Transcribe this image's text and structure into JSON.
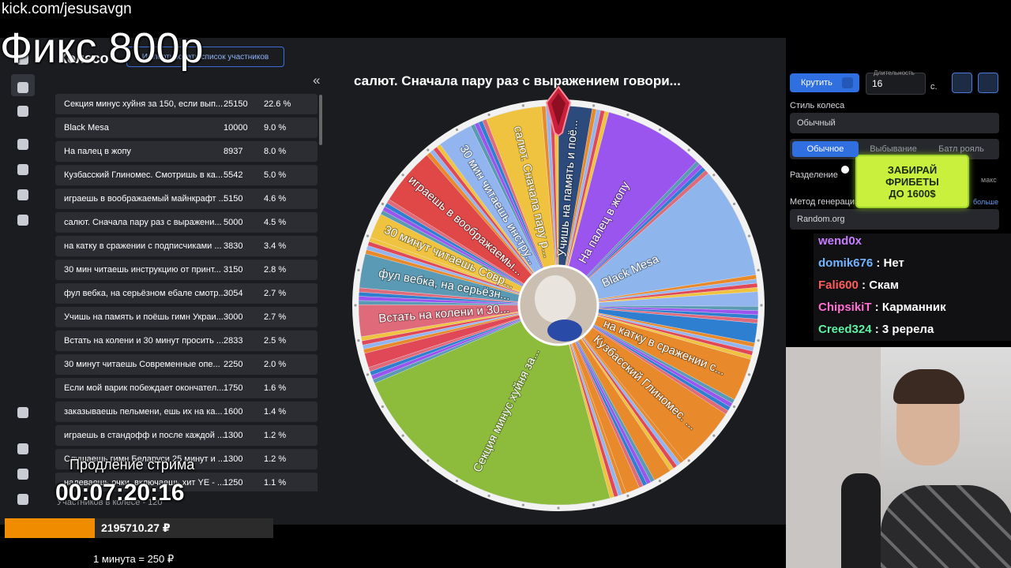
{
  "overlay": {
    "url": "kick.com/jesusavgn",
    "caption": "Фикс 800р"
  },
  "app": {
    "title": "Колесо",
    "import_button": "Импортировать список участников",
    "collapse": "«"
  },
  "participants": {
    "rows": [
      {
        "name": "Секция минус хуйня за 150, если вып...",
        "amount": 25150,
        "percent": "22.6 %",
        "color": "#8dbb3c"
      },
      {
        "name": "Black Mesa",
        "amount": 10000,
        "percent": "9.0 %",
        "color": "#8fb6ec"
      },
      {
        "name": "На палец в жопу",
        "amount": 8937,
        "percent": "8.0 %",
        "color": "#9a55ee"
      },
      {
        "name": "Кузбасский Глиномес. Смотришь в ка...",
        "amount": 5542,
        "percent": "5.0 %",
        "color": "#e8892b"
      },
      {
        "name": "играешь в воображаемый майнкрафт ...",
        "amount": 5150,
        "percent": "4.6 %",
        "color": "#e04848"
      },
      {
        "name": "салют. Сначала пару раз с выражени...",
        "amount": 5000,
        "percent": "4.5 %",
        "color": "#efc23f"
      },
      {
        "name": "на катку в сражении с подписчиками ...",
        "amount": 3830,
        "percent": "3.4 %",
        "color": "#e8892b"
      },
      {
        "name": "30 мин читаешь инструкцию от принт...",
        "amount": 3150,
        "percent": "2.8 %",
        "color": "#92b5f0"
      },
      {
        "name": "фул вебка, на серьёзном ебале смотр...",
        "amount": 3054,
        "percent": "2.7 %",
        "color": "#5a9ab4"
      },
      {
        "name": "Учишь на память и поёшь гимн Украи...",
        "amount": 3000,
        "percent": "2.7 %",
        "color": "#2c4a7c"
      },
      {
        "name": "Встать на колени и 30 минут просить ...",
        "amount": 2833,
        "percent": "2.5 %",
        "color": "#de6a7a"
      },
      {
        "name": "30 минут читаешь Современные опе...",
        "amount": 2250,
        "percent": "2.0 %",
        "color": "#efc23f"
      },
      {
        "name": "Если мой варик побеждает окончател...",
        "amount": 1750,
        "percent": "1.6 %",
        "color": "#2f7fd0"
      },
      {
        "name": "заказываешь пельмени, ешь их на ка...",
        "amount": 1600,
        "percent": "1.4 %",
        "color": "#e8892b"
      },
      {
        "name": "играешь в стандофф и после каждой ...",
        "amount": 1300,
        "percent": "1.2 %",
        "color": "#92b5f0"
      },
      {
        "name": "Слушаешь гимн Беларуси 25 минут и ...",
        "amount": 1300,
        "percent": "1.2 %",
        "color": "#e04858"
      },
      {
        "name": "надеваешь очки, включаешь хит YE - ...",
        "amount": 1250,
        "percent": "1.1 %",
        "color": "#e8892b"
      }
    ],
    "count_label": "Участников в колесе - 120"
  },
  "wheel": {
    "title": "салют. Сначала пару раз с выражением говори...",
    "labels": [
      "Учишь на память и поё...",
      "На палец в жопу",
      "Black Mesa",
      "на катку в сражении с...",
      "Кузбасский Глиномес. ...",
      "Секция минус хуйня за...",
      "Встать на колени и 30...",
      "фул вебка, на серьёзн...",
      "30 минут читаешь Совр...",
      "играешь в воображаемы...",
      "30 мин читаешь инстру...",
      "салют. Сначала пару р..."
    ]
  },
  "controls": {
    "spin": "Крутить",
    "duration_label": "Длительность",
    "duration": "16",
    "unit": "с.",
    "style_label": "Стиль колеса",
    "style": "Обычный",
    "modes": [
      "Обычное",
      "Выбывание",
      "Батл рояль"
    ],
    "split_label": "Разделение",
    "split_max": "макс",
    "method_label": "Метод генерации",
    "method": "Random.org",
    "more": "больше"
  },
  "ad": {
    "lines": [
      "ЗАБИРАЙ",
      "ФРИБЕТЫ",
      "ДО 1600$"
    ]
  },
  "chat": {
    "messages": [
      {
        "user": "wend0x",
        "color": "#c77dff"
      },
      {
        "user": "domik676",
        "text": "Нет",
        "color": "#72b4ff"
      },
      {
        "user": "Fali600",
        "text": "Скам",
        "color": "#ff5b5b"
      },
      {
        "user": "ChipsikiT",
        "text": "Карманник",
        "color": "#ff6fd2"
      },
      {
        "user": "Creed324",
        "text": "3 ререла",
        "color": "#5ff0a2"
      }
    ]
  },
  "stream": {
    "extension_label": "Продление стрима",
    "timer": "00:07:20:16",
    "total": "2195710.27 ₽",
    "rate": "1 минута = 250 ₽"
  }
}
